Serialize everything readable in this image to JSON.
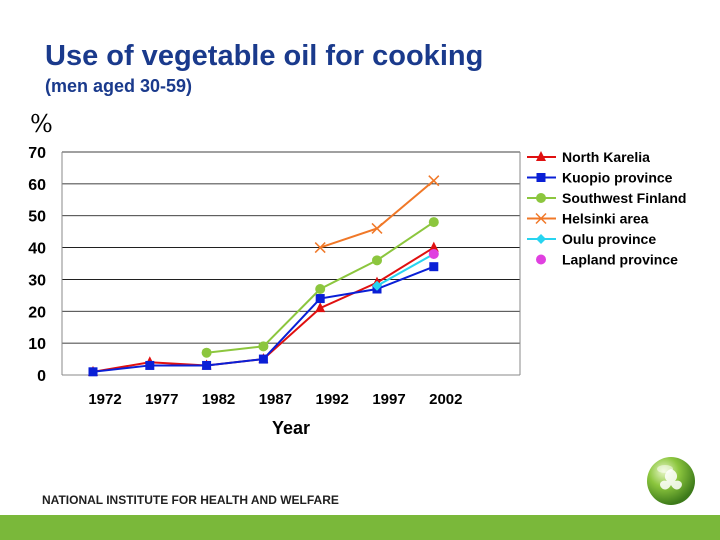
{
  "header": {
    "title": "Use of vegetable oil for cooking",
    "subtitle": "(men aged 30-59)",
    "unit": "%"
  },
  "footer": {
    "institute": "NATIONAL INSTITUTE FOR HEALTH AND WELFARE"
  },
  "chart_data": {
    "type": "line",
    "title": "Use of vegetable oil for cooking",
    "subtitle": "(men aged 30-59)",
    "xlabel": "Year",
    "ylabel": "%",
    "categories": [
      "1972",
      "1977",
      "1982",
      "1987",
      "1992",
      "1997",
      "2002"
    ],
    "yticks": [
      "0",
      "10",
      "20",
      "30",
      "40",
      "50",
      "60",
      "70"
    ],
    "ylim": [
      0,
      70
    ],
    "grid": true,
    "legend": "top-right",
    "series": [
      {
        "name": "North Karelia",
        "color": "#e01010",
        "marker": "triangle",
        "values": [
          1,
          4,
          3,
          5,
          21,
          29,
          40
        ]
      },
      {
        "name": "Kuopio province",
        "color": "#0a1fd6",
        "marker": "square",
        "values": [
          1,
          3,
          3,
          5,
          24,
          27,
          34
        ]
      },
      {
        "name": "Southwest Finland",
        "color": "#8cc63e",
        "marker": "circle",
        "values": [
          null,
          null,
          7,
          9,
          27,
          36,
          48
        ]
      },
      {
        "name": "Helsinki area",
        "color": "#f07828",
        "marker": "x",
        "values": [
          null,
          null,
          null,
          null,
          40,
          46,
          61
        ]
      },
      {
        "name": "Oulu province",
        "color": "#28d4f0",
        "marker": "diamond",
        "values": [
          null,
          null,
          null,
          null,
          null,
          28,
          38
        ]
      },
      {
        "name": "Lapland province",
        "color": "#e040e0",
        "marker": "circle",
        "values": [
          null,
          null,
          null,
          null,
          null,
          null,
          38
        ]
      }
    ]
  }
}
